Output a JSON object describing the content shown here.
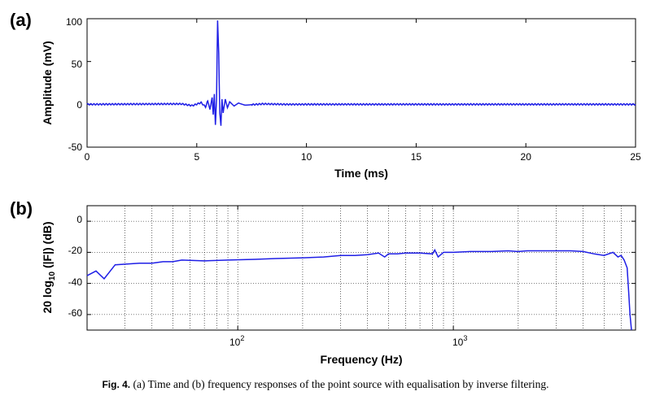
{
  "chart_data": [
    {
      "panel": "(a)",
      "type": "line",
      "xlabel": "Time (ms)",
      "ylabel": "Amplitude (mV)",
      "xlim": [
        0,
        25
      ],
      "ylim": [
        -50,
        100
      ],
      "xticks": [
        "0",
        "5",
        "10",
        "15",
        "20",
        "25"
      ],
      "yticks": [
        "-50",
        "0",
        "50",
        "100"
      ],
      "grid": false,
      "line_color": "#1f1fe6",
      "points": [
        [
          0,
          0
        ],
        [
          4.3,
          0.5
        ],
        [
          4.8,
          -1.5
        ],
        [
          5.2,
          2
        ],
        [
          5.4,
          -3
        ],
        [
          5.5,
          4
        ],
        [
          5.6,
          -6
        ],
        [
          5.7,
          8
        ],
        [
          5.75,
          -12
        ],
        [
          5.8,
          12
        ],
        [
          5.85,
          -24
        ],
        [
          5.9,
          5
        ],
        [
          5.95,
          98
        ],
        [
          6.0,
          60
        ],
        [
          6.05,
          -10
        ],
        [
          6.1,
          -25
        ],
        [
          6.15,
          6
        ],
        [
          6.2,
          -10
        ],
        [
          6.3,
          6
        ],
        [
          6.4,
          -4
        ],
        [
          6.5,
          3
        ],
        [
          6.7,
          -2
        ],
        [
          6.9,
          1.5
        ],
        [
          7.2,
          -1
        ],
        [
          8,
          0.5
        ],
        [
          9,
          0
        ],
        [
          25,
          0
        ]
      ]
    },
    {
      "panel": "(b)",
      "type": "line",
      "xlabel": "Frequency (Hz)",
      "ylabel": "20 log10 (|F|) (dB)",
      "xscale": "log",
      "xlim": [
        20,
        7000
      ],
      "ylim": [
        -70,
        10
      ],
      "xticks": [
        100,
        1000
      ],
      "yticks": [
        "0",
        "-20",
        "-40",
        "-60"
      ],
      "grid": true,
      "line_color": "#1f1fe6",
      "points": [
        [
          20,
          -35
        ],
        [
          22,
          -32
        ],
        [
          24,
          -37
        ],
        [
          27,
          -28
        ],
        [
          35,
          -27
        ],
        [
          40,
          -27
        ],
        [
          45,
          -26
        ],
        [
          50,
          -26
        ],
        [
          55,
          -25
        ],
        [
          70,
          -25.5
        ],
        [
          90,
          -25
        ],
        [
          120,
          -24.5
        ],
        [
          150,
          -24
        ],
        [
          200,
          -23.5
        ],
        [
          250,
          -23
        ],
        [
          300,
          -22
        ],
        [
          350,
          -22
        ],
        [
          400,
          -21.5
        ],
        [
          450,
          -20.5
        ],
        [
          480,
          -23
        ],
        [
          500,
          -21
        ],
        [
          550,
          -21
        ],
        [
          600,
          -20.5
        ],
        [
          700,
          -20.5
        ],
        [
          800,
          -21
        ],
        [
          820,
          -18.5
        ],
        [
          850,
          -23
        ],
        [
          900,
          -20
        ],
        [
          1000,
          -20
        ],
        [
          1200,
          -19.5
        ],
        [
          1500,
          -19.5
        ],
        [
          1800,
          -19
        ],
        [
          2000,
          -19.5
        ],
        [
          2200,
          -19
        ],
        [
          2500,
          -19
        ],
        [
          3000,
          -19
        ],
        [
          3500,
          -19
        ],
        [
          4000,
          -19.5
        ],
        [
          4500,
          -21
        ],
        [
          5000,
          -22
        ],
        [
          5500,
          -20
        ],
        [
          5800,
          -23
        ],
        [
          6000,
          -22
        ],
        [
          6200,
          -25
        ],
        [
          6400,
          -30
        ],
        [
          6500,
          -45
        ],
        [
          6600,
          -60
        ],
        [
          6700,
          -70
        ]
      ]
    }
  ],
  "panels": {
    "a": {
      "label": "(a)",
      "xlabel": "Time (ms)",
      "ylabel": "Amplitude (mV)",
      "xticks": [
        "0",
        "5",
        "10",
        "15",
        "20",
        "25"
      ],
      "yticks": [
        "100",
        "50",
        "0",
        "-50"
      ]
    },
    "b": {
      "label": "(b)",
      "xlabel": "Frequency (Hz)",
      "ylabel_main": "20 log",
      "ylabel_sub": "10",
      "ylabel_tail": " (|F|) (dB)",
      "xtick_base": "10",
      "xtick_exp": [
        "2",
        "3"
      ],
      "yticks": [
        "0",
        "-20",
        "-40",
        "-60"
      ]
    }
  },
  "caption": {
    "prefix": "Fig. 4.",
    "text": " (a) Time and (b) frequency responses of the point source with equalisation by inverse filtering."
  }
}
